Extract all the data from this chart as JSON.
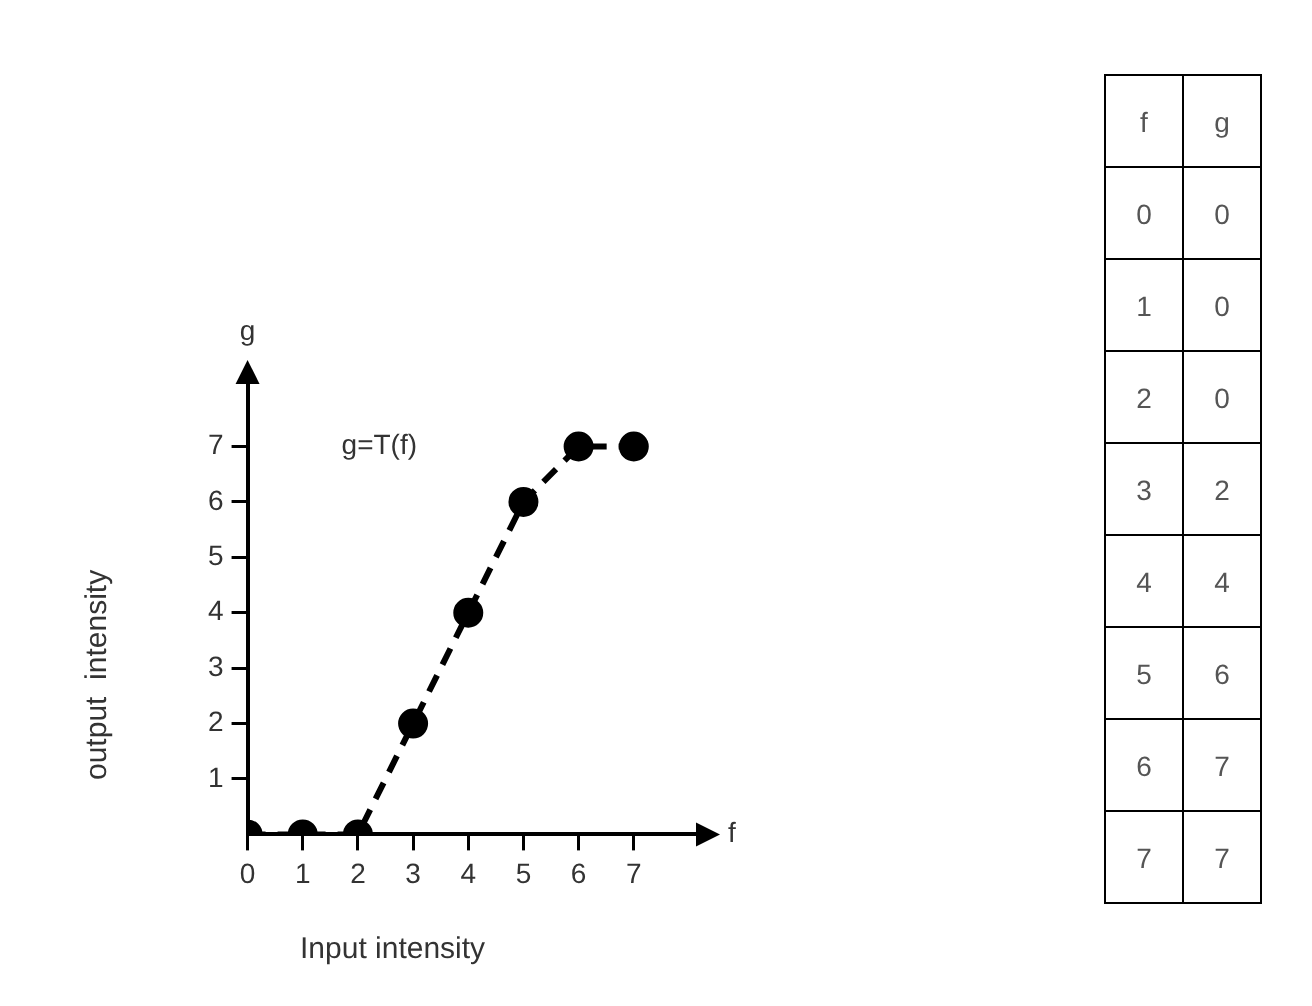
{
  "chart_data": [
    {
      "type": "line",
      "xlabel": "Input intensity",
      "ylabel": "output  intensity",
      "annotations": [
        "g=T(f)",
        "f",
        "g"
      ],
      "x": [
        0,
        1,
        2,
        3,
        4,
        5,
        6,
        7
      ],
      "series": [
        {
          "color": "#000000",
          "values": [
            0,
            0,
            0,
            2,
            4,
            6,
            7,
            7
          ]
        }
      ],
      "xlim": [
        0,
        8.2
      ],
      "ylim": [
        0,
        8.2
      ],
      "xticks": [
        0,
        1,
        2,
        3,
        4,
        5,
        6,
        7
      ],
      "yticks": [
        1,
        2,
        3,
        4,
        5,
        6,
        7
      ],
      "grid": false,
      "legend": false,
      "marker": "circle",
      "line_style": "dashed"
    },
    {
      "type": "heatmap",
      "ylabel": "f",
      "categories": [
        "g"
      ],
      "y_categories": [
        "0",
        "1",
        "2",
        "3",
        "4",
        "5",
        "6",
        "7"
      ],
      "cells": [
        [
          0
        ],
        [
          0
        ],
        [
          0
        ],
        [
          2
        ],
        [
          4
        ],
        [
          6
        ],
        [
          7
        ],
        [
          7
        ]
      ],
      "data_labels": true
    }
  ]
}
